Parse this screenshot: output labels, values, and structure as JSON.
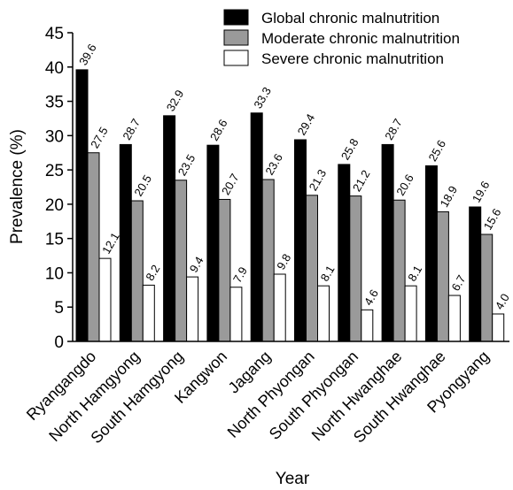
{
  "chart_data": {
    "type": "bar",
    "title": "",
    "xlabel": "Year",
    "ylabel": "Prevalence (%)",
    "ylim": [
      0,
      45
    ],
    "yticks": [
      0,
      5,
      10,
      15,
      20,
      25,
      30,
      35,
      40,
      45
    ],
    "grid": false,
    "legend_position": "top-right",
    "categories": [
      "Ryangangdo",
      "North Hamgyong",
      "South Hamgyong",
      "Kangwon",
      "Jagang",
      "North Phyongan",
      "South Phyongan",
      "North Hwanghae",
      "South Hwanghae",
      "Pyongyang"
    ],
    "series": [
      {
        "name": "Global chronic malnutrition",
        "color": "#000000",
        "values": [
          39.6,
          28.7,
          32.9,
          28.6,
          33.3,
          29.4,
          25.8,
          28.7,
          25.6,
          19.6
        ],
        "labels": [
          "39.6",
          "28.7",
          "32.9",
          "28.6",
          "33.3",
          "29.4",
          "25.8",
          "28.7",
          "25.6",
          "19.6"
        ]
      },
      {
        "name": "Moderate chronic malnutrition",
        "color": "#9a9a9a",
        "values": [
          27.5,
          20.5,
          23.5,
          20.7,
          23.6,
          21.3,
          21.2,
          20.6,
          18.9,
          15.6
        ],
        "labels": [
          "27.5",
          "20.5",
          "23.5",
          "20.7",
          "23.6",
          "21.3",
          "21.2",
          "20.6",
          "18.9",
          "15.6"
        ]
      },
      {
        "name": "Severe chronic malnutrition",
        "color": "#ffffff",
        "values": [
          12.1,
          8.2,
          9.4,
          7.9,
          9.8,
          8.1,
          4.6,
          8.1,
          6.7,
          4.0
        ],
        "labels": [
          "12.1",
          "8.2",
          "9.4",
          "7.9",
          "9.8",
          "8.1",
          "4.6",
          "8.1",
          "6.7",
          "4.0"
        ]
      }
    ]
  }
}
